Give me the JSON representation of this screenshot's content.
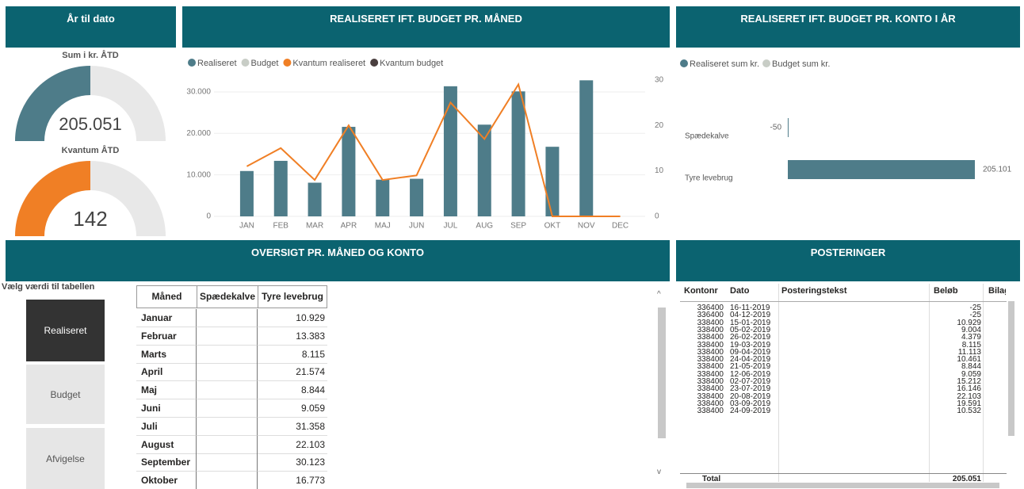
{
  "ytd_panel": {
    "title": "År til dato"
  },
  "chart_data": [
    {
      "type": "gauge",
      "title": "Sum i kr. ÅTD",
      "value": 205051,
      "value_label": "205.051",
      "range": [
        0,
        410102
      ],
      "color": "#4e7c89"
    },
    {
      "type": "gauge",
      "title": "Kvantum ÅTD",
      "value": 142,
      "value_label": "142",
      "range": [
        0,
        284
      ],
      "color": "#f07f25"
    },
    {
      "type": "combo",
      "title": "REALISERET IFT. BUDGET PR. MÅNED",
      "categories": [
        "JAN",
        "FEB",
        "MAR",
        "APR",
        "MAJ",
        "JUN",
        "JUL",
        "AUG",
        "SEP",
        "OKT",
        "NOV",
        "DEC"
      ],
      "series": [
        {
          "name": "Realiseret",
          "color": "#4e7c89",
          "values": [
            10929,
            13383,
            8115,
            21574,
            8844,
            9059,
            31358,
            22103,
            30123,
            16773,
            32790,
            null
          ]
        },
        {
          "name": "Budget",
          "color": "#c8cdc6",
          "values": [
            null,
            null,
            null,
            null,
            null,
            null,
            null,
            null,
            null,
            null,
            null,
            null
          ]
        },
        {
          "name": "Kvantum realiseret",
          "color": "#f07f25",
          "axis": "y2",
          "values": [
            11,
            15,
            8,
            20,
            8,
            9,
            25,
            17,
            29,
            0,
            0,
            0
          ]
        },
        {
          "name": "Kvantum budget",
          "color": "#4a3f3f",
          "axis": "y2",
          "values": [
            null,
            null,
            null,
            null,
            null,
            null,
            null,
            null,
            null,
            null,
            null,
            null
          ]
        }
      ],
      "ylim": [
        0,
        34000
      ],
      "yticks": [
        0,
        {
          "value": 10000,
          "label": "10.000"
        },
        {
          "value": 20000,
          "label": "20.000"
        },
        {
          "value": 30000,
          "label": "30.000"
        }
      ],
      "y2lim": [
        0,
        31
      ],
      "y2ticks": [
        0,
        10,
        20,
        30
      ],
      "grid": true,
      "legend": "top"
    },
    {
      "type": "hbar",
      "title": "REALISERET IFT. BUDGET PR. KONTO I ÅR",
      "categories": [
        "Spædekalve",
        "Tyre levebrug"
      ],
      "series": [
        {
          "name": "Realiseret sum kr.",
          "color": "#4e7c89",
          "values": [
            -50,
            205101
          ],
          "value_labels": [
            "-50",
            "205.101"
          ]
        },
        {
          "name": "Budget sum kr.",
          "color": "#c8cdc6",
          "values": [
            null,
            null
          ]
        }
      ],
      "legend": "top"
    }
  ],
  "overview": {
    "title": "OVERSIGT PR. MÅNED OG KONTO",
    "columns": [
      "Måned",
      "Spædekalve",
      "Tyre levebrug"
    ],
    "rows": [
      [
        "Januar",
        "10.929"
      ],
      [
        "Februar",
        "13.383"
      ],
      [
        "Marts",
        "8.115"
      ],
      [
        "April",
        "21.574"
      ],
      [
        "Maj",
        "8.844"
      ],
      [
        "Juni",
        "9.059"
      ],
      [
        "Juli",
        "31.358"
      ],
      [
        "August",
        "22.103"
      ],
      [
        "September",
        "30.123"
      ],
      [
        "Oktober",
        "16.773"
      ]
    ]
  },
  "slicer": {
    "label": "Vælg værdi til tabellen",
    "options": [
      "Realiseret",
      "Budget",
      "Afvigelse"
    ],
    "selected": 0
  },
  "postings": {
    "title": "POSTERINGER",
    "columns": [
      "Kontonr",
      "Dato",
      "Posteringstekst",
      "Beløb",
      "Bilag"
    ],
    "rows": [
      [
        "336400",
        "16-11-2019",
        "-25"
      ],
      [
        "336400",
        "04-12-2019",
        "-25"
      ],
      [
        "338400",
        "15-01-2019",
        "10.929"
      ],
      [
        "338400",
        "05-02-2019",
        "9.004"
      ],
      [
        "338400",
        "26-02-2019",
        "4.379"
      ],
      [
        "338400",
        "19-03-2019",
        "8.115"
      ],
      [
        "338400",
        "09-04-2019",
        "11.113"
      ],
      [
        "338400",
        "24-04-2019",
        "10.461"
      ],
      [
        "338400",
        "21-05-2019",
        "8.844"
      ],
      [
        "338400",
        "12-06-2019",
        "9.059"
      ],
      [
        "338400",
        "02-07-2019",
        "15.212"
      ],
      [
        "338400",
        "23-07-2019",
        "16.146"
      ],
      [
        "338400",
        "20-08-2019",
        "22.103"
      ],
      [
        "338400",
        "03-09-2019",
        "19.591"
      ],
      [
        "338400",
        "24-09-2019",
        "10.532"
      ]
    ],
    "total": {
      "label": "Total",
      "value": "205.051"
    }
  }
}
